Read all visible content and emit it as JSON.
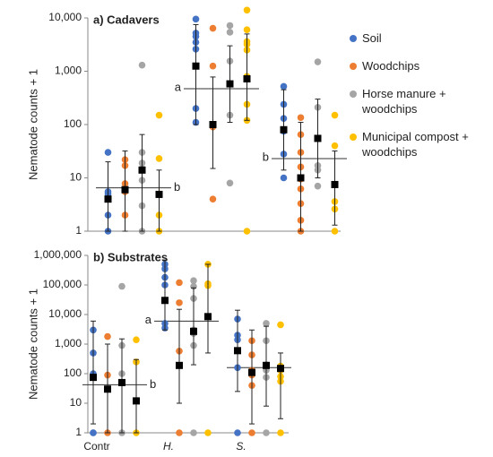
{
  "chart_data": [
    {
      "type": "dot",
      "title": "a) Cadavers",
      "y_label": "Nematode counts + 1",
      "log_y": true,
      "categories": [
        null,
        null,
        null
      ],
      "ylim": [
        1,
        10000
      ],
      "yticks": [
        1,
        10,
        100,
        {
          "value": 1000,
          "label": "1,000"
        },
        {
          "value": 10000,
          "label": "10,000"
        }
      ],
      "series": [
        {
          "name": "Soil",
          "color": "#4472c4",
          "points": [
            [
              30,
              5.5,
              5,
              2,
              1
            ],
            [
              9500,
              5200,
              4500,
              3500,
              2600,
              200,
              110
            ],
            [
              520,
              240,
              130,
              75,
              28,
              10
            ]
          ],
          "means": [
            4,
            1250,
            80
          ],
          "err_low": [
            1,
            100,
            14
          ],
          "err_high": [
            20,
            7500,
            450
          ]
        },
        {
          "name": "Woodchips",
          "color": "#ed7d31",
          "points": [
            [
              22,
              17,
              7.8,
              5.5,
              2
            ],
            [
              6400,
              1250,
              90,
              4
            ],
            [
              135,
              65,
              30,
              16,
              9.5,
              6.2,
              3.3,
              1.6,
              1
            ]
          ],
          "means": [
            6,
            100,
            10
          ],
          "err_low": [
            1,
            15,
            1
          ],
          "err_high": [
            32,
            780,
            110
          ]
        },
        {
          "name": "Horse manure + woodchips",
          "color": "#a5a5a5",
          "points": [
            [
              1300,
              30,
              19,
              15,
              9,
              3,
              1
            ],
            [
              7200,
              5400,
              1550,
              150,
              8
            ],
            [
              1500,
              210,
              17,
              14,
              7
            ]
          ],
          "means": [
            14,
            580,
            55
          ],
          "err_low": [
            1,
            110,
            10
          ],
          "err_high": [
            65,
            3000,
            300
          ]
        },
        {
          "name": "Municipal compost + woodchips",
          "color": "#ffc000",
          "points": [
            [
              150,
              23,
              5,
              2,
              1
            ],
            [
              14000,
              6000,
              3600,
              3200,
              2500,
              800,
              240,
              120,
              1
            ],
            [
              150,
              40,
              3.6,
              2.6,
              1
            ]
          ],
          "means": [
            4.9,
            720,
            7.5
          ],
          "err_low": [
            1,
            120,
            1.3
          ],
          "err_high": [
            14,
            5000,
            32
          ]
        }
      ],
      "group_means": [
        {
          "value": 6.5,
          "letter": "b"
        },
        {
          "value": 470,
          "letter": "a"
        },
        {
          "value": 23,
          "letter": "b"
        }
      ]
    },
    {
      "type": "dot",
      "title": "b) Substrates",
      "y_label": "Nematode counts + 1",
      "log_y": true,
      "categories": [
        "Contr",
        "H.",
        "S."
      ],
      "ylim": [
        1,
        1000000
      ],
      "yticks": [
        1,
        10,
        100,
        {
          "value": 1000,
          "label": "1,000"
        },
        {
          "value": 10000,
          "label": "10,000"
        },
        {
          "value": 100000,
          "label": "100,000"
        },
        {
          "value": 1000000,
          "label": "1,000,000"
        }
      ],
      "series": [
        {
          "color": "#4472c4",
          "points": [
            [
              3000,
              500,
              100,
              1,
              1
            ],
            [
              500000,
              350000,
              180000,
              100000,
              5000,
              3500
            ],
            [
              7000,
              2000,
              1400,
              600,
              160,
              1
            ]
          ],
          "means": [
            75,
            30000,
            600
          ],
          "err_low": [
            2,
            3000,
            25
          ],
          "err_high": [
            6000,
            700000,
            14000
          ]
        },
        {
          "color": "#ed7d31",
          "points": [
            [
              1800,
              90,
              1
            ],
            [
              120000,
              25000,
              580,
              1
            ],
            [
              1300,
              430,
              130,
              90,
              40,
              1
            ]
          ],
          "means": [
            30,
            190,
            110
          ],
          "err_low": [
            1,
            10,
            2
          ],
          "err_high": [
            1000,
            15000,
            3000
          ]
        },
        {
          "color": "#a5a5a5",
          "points": [
            [
              90000,
              900,
              100,
              1
            ],
            [
              140000,
              90000,
              35000,
              3000,
              2300,
              900,
              1
            ],
            [
              5000,
              1300,
              200,
              130,
              75,
              1
            ]
          ],
          "means": [
            50,
            2700,
            190
          ],
          "err_low": [
            1,
            200,
            8
          ],
          "err_high": [
            1500,
            80000,
            4000
          ]
        },
        {
          "color": "#ffc000",
          "points": [
            [
              1400,
              250,
              1
            ],
            [
              500000,
              110000,
              95000,
              1
            ],
            [
              4500,
              180,
              130,
              80,
              55,
              1
            ]
          ],
          "means": [
            12,
            8500,
            150
          ],
          "err_low": [
            1,
            500,
            3
          ],
          "err_high": [
            300,
            500000,
            500
          ]
        }
      ],
      "group_means": [
        {
          "value": 42,
          "letter": "b"
        },
        {
          "value": 6000,
          "letter": "a"
        },
        {
          "value": 160,
          "letter": null
        }
      ]
    }
  ]
}
